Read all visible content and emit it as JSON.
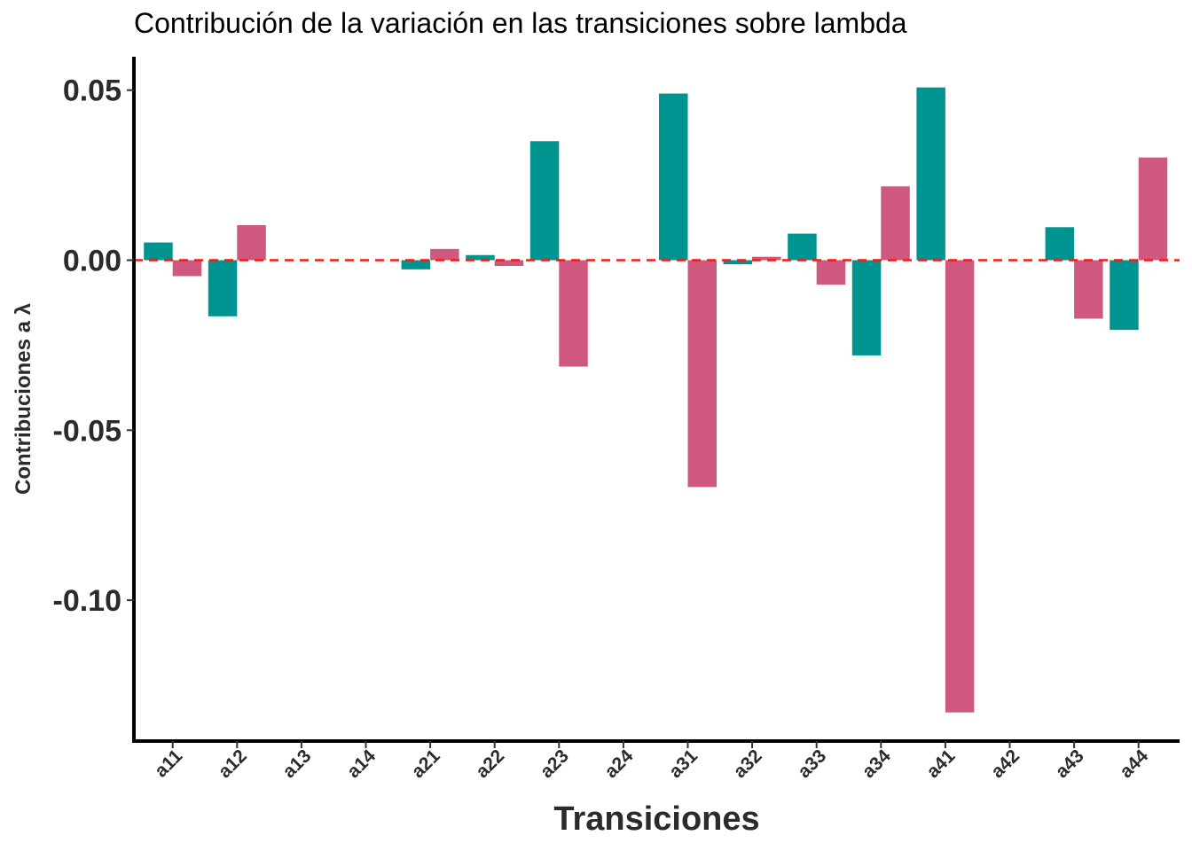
{
  "chart_data": {
    "type": "bar",
    "title": "Contribución de la variación en las transiciones sobre lambda",
    "xlabel": "Transiciones",
    "ylabel": "Contribuciones a λ",
    "categories": [
      "a11",
      "a12",
      "a13",
      "a14",
      "a21",
      "a22",
      "a23",
      "a24",
      "a31",
      "a32",
      "a33",
      "a34",
      "a41",
      "a42",
      "a43",
      "a44"
    ],
    "yticks": [
      0.05,
      0.0,
      -0.05,
      -0.1
    ],
    "ytick_labels": [
      "0.05",
      "0.00",
      "-0.05",
      "-0.10"
    ],
    "ylim": [
      -0.14,
      0.06
    ],
    "grid": false,
    "series": [
      {
        "color": "#009490",
        "values": [
          0.0052,
          -0.0165,
          0,
          0,
          -0.0027,
          0.0015,
          0.035,
          0,
          0.049,
          -0.0012,
          0.0078,
          -0.028,
          0.0508,
          0,
          0.0097,
          -0.0205
        ]
      },
      {
        "color": "#cf597e",
        "values": [
          -0.0047,
          0.0103,
          0,
          0,
          0.0033,
          -0.0017,
          -0.0313,
          0,
          -0.0667,
          0.001,
          -0.0072,
          0.0217,
          -0.133,
          0,
          -0.0172,
          0.0302
        ]
      }
    ],
    "reference_line": {
      "y": 0,
      "color": "#ee1c1c",
      "style": "dashed"
    },
    "legend": "none"
  }
}
